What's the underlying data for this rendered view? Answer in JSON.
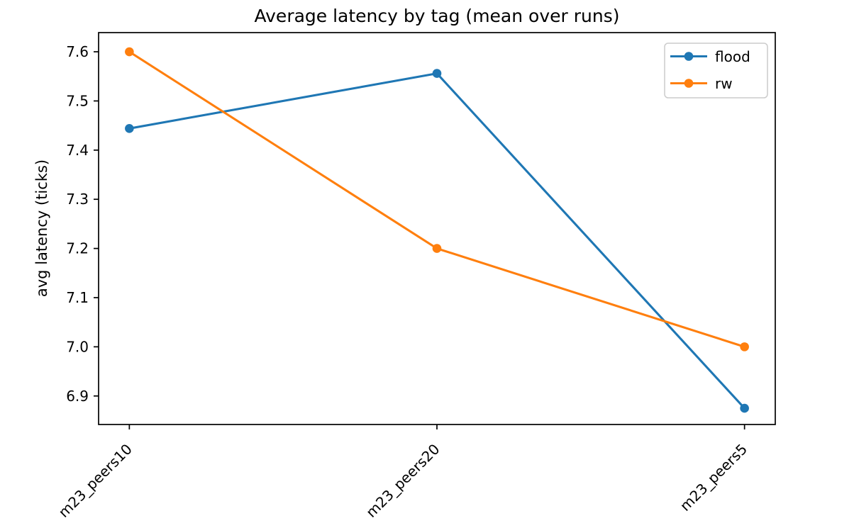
{
  "chart_data": {
    "type": "line",
    "title": "Average latency by tag (mean over runs)",
    "xlabel": "",
    "ylabel": "avg latency (ticks)",
    "categories": [
      "m23_peers10",
      "m23_peers20",
      "m23_peers5"
    ],
    "series": [
      {
        "name": "flood",
        "color": "#1f77b4",
        "values": [
          7.444,
          7.556,
          6.875
        ]
      },
      {
        "name": "rw",
        "color": "#ff7f0e",
        "values": [
          7.6,
          7.2,
          7.0
        ]
      }
    ],
    "yticks": [
      6.9,
      7.0,
      7.1,
      7.2,
      7.3,
      7.4,
      7.5,
      7.6
    ],
    "ylim": [
      6.842,
      7.639
    ],
    "xlim": [
      -0.1,
      2.1
    ],
    "grid": false,
    "marker": "circle",
    "legend_position": "upper right",
    "x_tick_label_rotation": 45,
    "colors": {
      "axes": "#000000",
      "legend_border": "#cccccc",
      "background": "#ffffff"
    }
  }
}
